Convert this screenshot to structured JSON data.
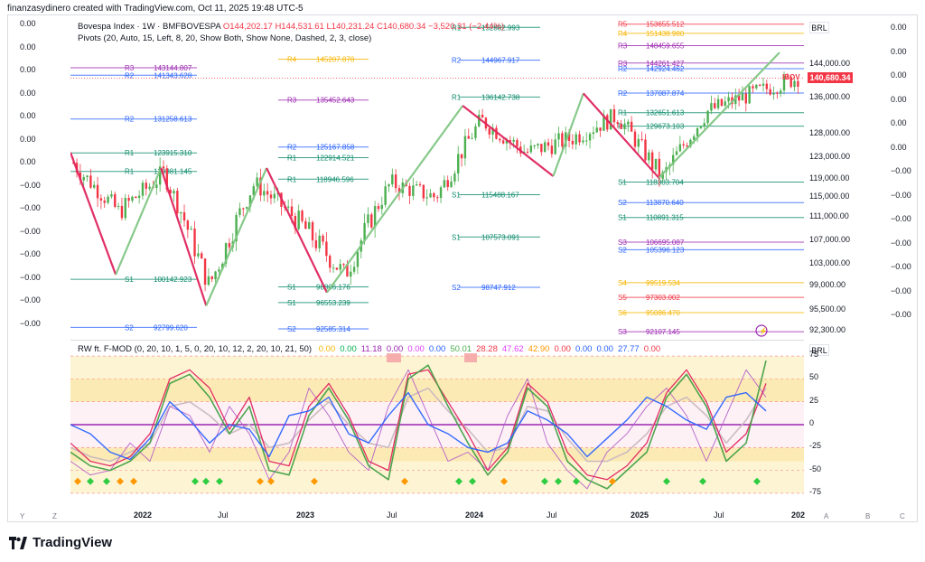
{
  "header": {
    "attribution": "finanzasydinero created with TradingView.com, Oct 11, 2025 19:48 UTC-5"
  },
  "main_legend": {
    "symbol": "Bovespa Index · 1W · BMFBOVESPA",
    "open": "O144,202.17",
    "high": "H144,531.61",
    "low": "L140,231.24",
    "close": "C140,680.34",
    "change": "−3,520.31 (−2.44%)",
    "pivots": "Pivots (20, Auto, 15, Left, 8, 20, Show Both, Show None, Dashed, 2, 3, close)"
  },
  "osc_legend": {
    "name": "RW ft. F-MOD (0, 20, 10, 1, 5, 0, 20, 10, 12, 2, 20, 10, 21, 50)",
    "values": [
      {
        "v": "0.00",
        "c": "#f7b500"
      },
      {
        "v": "0.00",
        "c": "#00b050"
      },
      {
        "v": "11.18",
        "c": "#9c27b0"
      },
      {
        "v": "0.00",
        "c": "#9c27b0"
      },
      {
        "v": "0.00",
        "c": "#e040fb"
      },
      {
        "v": "0.00",
        "c": "#2962ff"
      },
      {
        "v": "50.01",
        "c": "#4caf50"
      },
      {
        "v": "28.28",
        "c": "#f23645"
      },
      {
        "v": "47.62",
        "c": "#e040fb"
      },
      {
        "v": "42.90",
        "c": "#ff9800"
      },
      {
        "v": "0.00",
        "c": "#f23645"
      },
      {
        "v": "0.00",
        "c": "#2962ff"
      },
      {
        "v": "0.00",
        "c": "#2962ff"
      },
      {
        "v": "27.77",
        "c": "#2962ff"
      },
      {
        "v": "0.00",
        "c": "#f23645"
      }
    ]
  },
  "currency": "BRL",
  "current_price": "140,680.34",
  "symbol_tag": "IBOV",
  "price_axis": [
    "144,000.00",
    "136,000.00",
    "128,000.00",
    "123,000.00",
    "119,000.00",
    "115,000.00",
    "111,000.00",
    "107,000.00",
    "103,000.00",
    "99,000.00",
    "95,500.00",
    "92,300.00"
  ],
  "osc_axis": [
    "75",
    "50",
    "25",
    "0",
    "-25",
    "-50",
    "-75"
  ],
  "left_scale": [
    "0.00",
    "0.00",
    "0.00",
    "0.00",
    "0.00",
    "0.00",
    "0.00",
    "−0.00",
    "−0.00",
    "−0.00",
    "−0.00",
    "−0.00",
    "−0.00",
    "−0.00"
  ],
  "right_scale": [
    "0.00",
    "0.00",
    "0.00",
    "0.00",
    "0.00",
    "0.00",
    "−0.00",
    "−0.00",
    "−0.00",
    "−0.00",
    "−0.00",
    "−0.00",
    "−0.00"
  ],
  "time_axis": [
    "2022",
    "Jul",
    "2023",
    "Jul",
    "2024",
    "Jul",
    "2025",
    "Jul",
    "202"
  ],
  "corners": [
    "Y",
    "Z",
    "A",
    "B",
    "C"
  ],
  "brand": "TradingView",
  "colors": {
    "up": "#4caf50",
    "down": "#f23645",
    "zigzag_up": "#81c784",
    "zigzag_down": "#e0245e",
    "osc_blue": "#2962ff"
  },
  "chart_data": {
    "type": "candlestick",
    "title": "Bovespa Index · 1W · BMFBOVESPA",
    "ylim": [
      92300,
      156000
    ],
    "x": [
      "2021-10",
      "2022-01",
      "2022-04",
      "2022-07",
      "2022-10",
      "2023-01",
      "2023-04",
      "2023-07",
      "2023-10",
      "2024-01",
      "2024-04",
      "2024-07",
      "2024-10",
      "2025-01",
      "2025-04",
      "2025-07",
      "2025-10"
    ],
    "close_path": [
      122000,
      112000,
      120000,
      99000,
      118000,
      110000,
      101000,
      118000,
      115000,
      131000,
      124000,
      127000,
      132000,
      119000,
      133000,
      137000,
      140680
    ],
    "zigzag_pivots": [
      {
        "x": "2021-10",
        "y": 124000
      },
      {
        "x": "2022-01",
        "y": 101000
      },
      {
        "x": "2022-04",
        "y": 121000
      },
      {
        "x": "2022-07",
        "y": 96100
      },
      {
        "x": "2022-11",
        "y": 121000
      },
      {
        "x": "2023-03",
        "y": 98000
      },
      {
        "x": "2023-12",
        "y": 134200
      },
      {
        "x": "2024-06",
        "y": 119500
      },
      {
        "x": "2024-08",
        "y": 137000
      },
      {
        "x": "2025-01",
        "y": 119200
      },
      {
        "x": "2025-09",
        "y": 146800
      }
    ],
    "pivot_levels": [
      {
        "label": "R5",
        "value": "153655.512",
        "seg": 4,
        "color": "#f23645"
      },
      {
        "label": "R4",
        "value": "151438.980",
        "seg": 4,
        "color": "#f7b500"
      },
      {
        "label": "R3",
        "value": "148459.655",
        "seg": 4,
        "color": "#9c27b0"
      },
      {
        "label": "R3",
        "value": "144261.427",
        "seg": 4,
        "color": "#9c27b0"
      },
      {
        "label": "R2",
        "value": "142924.462",
        "seg": 4,
        "color": "#2962ff"
      },
      {
        "label": "R2",
        "value": "137087.874",
        "seg": 4,
        "color": "#2962ff"
      },
      {
        "label": "R1",
        "value": "132651.613",
        "seg": 4,
        "color": "#0b8a6a"
      },
      {
        "label": "R1",
        "value": "129673.103",
        "seg": 4,
        "color": "#0b8a6a"
      },
      {
        "label": "S1",
        "value": "118303.704",
        "seg": 4,
        "color": "#0b8a6a"
      },
      {
        "label": "S2",
        "value": "113870.640",
        "seg": 4,
        "color": "#2962ff"
      },
      {
        "label": "S1",
        "value": "110891.315",
        "seg": 4,
        "color": "#0b8a6a"
      },
      {
        "label": "S3",
        "value": "106695.087",
        "seg": 4,
        "color": "#9c27b0"
      },
      {
        "label": "S2",
        "value": "105396.123",
        "seg": 4,
        "color": "#2962ff"
      },
      {
        "label": "S4",
        "value": "99519.534",
        "seg": 4,
        "color": "#f7b500"
      },
      {
        "label": "S5",
        "value": "97303.002",
        "seg": 4,
        "color": "#f23645"
      },
      {
        "label": "S6",
        "value": "95086.470",
        "seg": 4,
        "color": "#f7b500"
      },
      {
        "label": "S3",
        "value": "92107.145",
        "seg": 4,
        "color": "#9c27b0"
      },
      {
        "label": "R1",
        "value": "152882.993",
        "seg": 3,
        "color": "#0b8a6a"
      },
      {
        "label": "R2",
        "value": "144967.917",
        "seg": 3,
        "color": "#2962ff"
      },
      {
        "label": "R1",
        "value": "136142.738",
        "seg": 3,
        "color": "#0b8a6a"
      },
      {
        "label": "S1",
        "value": "115488.167",
        "seg": 3,
        "color": "#0b8a6a"
      },
      {
        "label": "S1",
        "value": "107573.091",
        "seg": 3,
        "color": "#0b8a6a"
      },
      {
        "label": "S2",
        "value": "98747.912",
        "seg": 3,
        "color": "#2962ff"
      },
      {
        "label": "R4",
        "value": "145207.878",
        "seg": 2,
        "color": "#f7b500"
      },
      {
        "label": "R3",
        "value": "135452.643",
        "seg": 2,
        "color": "#9c27b0"
      },
      {
        "label": "R2",
        "value": "125167.858",
        "seg": 2,
        "color": "#2962ff"
      },
      {
        "label": "R1",
        "value": "122914.521",
        "seg": 2,
        "color": "#0b8a6a"
      },
      {
        "label": "R1",
        "value": "118946.596",
        "seg": 2,
        "color": "#0b8a6a"
      },
      {
        "label": "S1",
        "value": "98806.176",
        "seg": 2,
        "color": "#0b8a6a"
      },
      {
        "label": "S1",
        "value": "96553.239",
        "seg": 2,
        "color": "#0b8a6a"
      },
      {
        "label": "S2",
        "value": "92585.314",
        "seg": 2,
        "color": "#2962ff"
      },
      {
        "label": "R3",
        "value": "143144.807",
        "seg": 1,
        "color": "#9c27b0"
      },
      {
        "label": "R2",
        "value": "141343.628",
        "seg": 1,
        "color": "#2962ff"
      },
      {
        "label": "R2",
        "value": "131258.613",
        "seg": 1,
        "color": "#2962ff"
      },
      {
        "label": "R1",
        "value": "123915.310",
        "seg": 1,
        "color": "#0b8a6a"
      },
      {
        "label": "R1",
        "value": "120381.145",
        "seg": 1,
        "color": "#0b8a6a"
      },
      {
        "label": "S1",
        "value": "100142.923",
        "seg": 1,
        "color": "#0b8a6a"
      },
      {
        "label": "S2",
        "value": "92799.620",
        "seg": 1,
        "color": "#2962ff"
      }
    ]
  },
  "oscillator": {
    "ylim": [
      -80,
      80
    ],
    "blue_line": [
      0,
      -10,
      -30,
      -38,
      -15,
      25,
      5,
      -20,
      0,
      -5,
      -35,
      10,
      15,
      30,
      -10,
      -20,
      10,
      35,
      0,
      -10,
      -25,
      -30,
      -20,
      15,
      5,
      -10,
      -35,
      -15,
      5,
      30,
      20,
      5,
      -5,
      30,
      35,
      15
    ],
    "green_line": [
      -30,
      -45,
      -50,
      -40,
      -20,
      45,
      55,
      30,
      -10,
      20,
      -50,
      -55,
      10,
      40,
      5,
      -45,
      -60,
      50,
      65,
      20,
      -20,
      -55,
      -30,
      40,
      20,
      -40,
      -60,
      -70,
      -50,
      -30,
      30,
      55,
      20,
      -40,
      -20,
      70
    ],
    "red_line": [
      -20,
      -40,
      -45,
      -35,
      -10,
      50,
      60,
      40,
      -5,
      30,
      -40,
      -45,
      20,
      45,
      10,
      -40,
      -50,
      55,
      60,
      25,
      -10,
      -50,
      -25,
      45,
      25,
      -30,
      -55,
      -60,
      -45,
      -20,
      35,
      60,
      25,
      -30,
      -10,
      45
    ],
    "purple_line": [
      -40,
      -55,
      -50,
      -20,
      -40,
      20,
      10,
      -30,
      20,
      -10,
      -60,
      -30,
      40,
      10,
      -30,
      -50,
      20,
      60,
      10,
      -40,
      -30,
      -50,
      10,
      50,
      -20,
      -50,
      -70,
      -30,
      -10,
      20,
      40,
      10,
      -40,
      10,
      60,
      30
    ],
    "grey_line": [
      -25,
      -35,
      -40,
      -30,
      -20,
      20,
      25,
      10,
      -10,
      0,
      -25,
      -20,
      5,
      25,
      0,
      -20,
      -25,
      30,
      40,
      15,
      -5,
      -30,
      -25,
      20,
      15,
      -15,
      -40,
      -40,
      -30,
      -10,
      20,
      30,
      10,
      -20,
      5,
      40
    ]
  }
}
